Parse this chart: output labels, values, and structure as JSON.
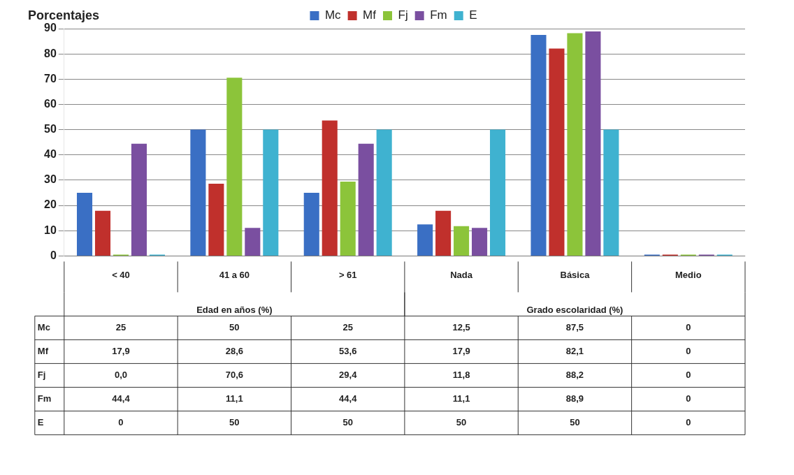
{
  "chart_data": {
    "type": "bar",
    "ylabel": "Porcentajes",
    "categories": [
      "< 40",
      "41 a 60",
      "> 61",
      "Nada",
      "Básica",
      "Medio"
    ],
    "series": [
      {
        "name": "Mc",
        "color": "#3a6fc4",
        "values": [
          25,
          50,
          25,
          12.5,
          87.5,
          0
        ],
        "value_labels": [
          "25",
          "50",
          "25",
          "12,5",
          "87,5",
          "0"
        ]
      },
      {
        "name": "Mf",
        "color": "#c0302c",
        "values": [
          17.9,
          28.6,
          53.6,
          17.9,
          82.1,
          0
        ],
        "value_labels": [
          "17,9",
          "28,6",
          "53,6",
          "17,9",
          "82,1",
          "0"
        ]
      },
      {
        "name": "Fj",
        "color": "#8cc43a",
        "values": [
          0,
          70.6,
          29.4,
          11.8,
          88.2,
          0
        ],
        "value_labels": [
          "0,0",
          "70,6",
          "29,4",
          "11,8",
          "88,2",
          "0"
        ]
      },
      {
        "name": "Fm",
        "color": "#7a4fa0",
        "values": [
          44.4,
          11.1,
          44.4,
          11.1,
          88.9,
          0
        ],
        "value_labels": [
          "44,4",
          "11,1",
          "44,4",
          "11,1",
          "88,9",
          "0"
        ]
      },
      {
        "name": "E",
        "color": "#3fb2d0",
        "values": [
          0,
          50,
          50,
          50,
          50,
          0
        ],
        "value_labels": [
          "0",
          "50",
          "50",
          "50",
          "50",
          "0"
        ]
      }
    ],
    "annotations": [
      "Edad en años (%)",
      "Grado escolaridad (%)"
    ],
    "ylim": [
      0,
      90
    ],
    "yticks": [
      0,
      10,
      20,
      30,
      40,
      50,
      60,
      70,
      80,
      90
    ],
    "grid": "y",
    "legend": "top"
  }
}
